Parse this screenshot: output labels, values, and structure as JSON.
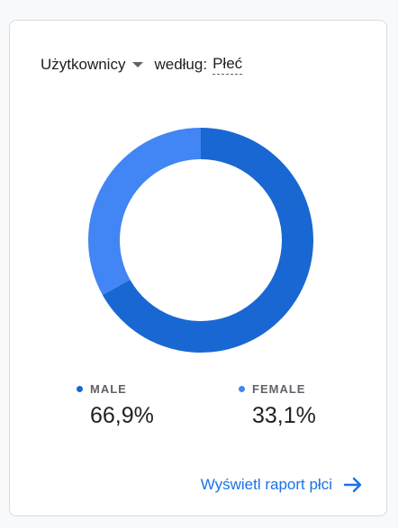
{
  "header": {
    "metric_label": "Użytkownicy",
    "dimension_prefix": "według:",
    "dimension_label": "Płeć"
  },
  "chart_data": {
    "type": "pie",
    "categories": [
      "MALE",
      "FEMALE"
    ],
    "values": [
      66.9,
      33.1
    ],
    "colors": [
      "#1967d2",
      "#4285f4"
    ]
  },
  "legend": [
    {
      "label": "MALE",
      "value": "66,9%",
      "color": "#1967d2"
    },
    {
      "label": "FEMALE",
      "value": "33,1%",
      "color": "#4285f4"
    }
  ],
  "footer": {
    "link_label": "Wyświetl raport płci"
  }
}
